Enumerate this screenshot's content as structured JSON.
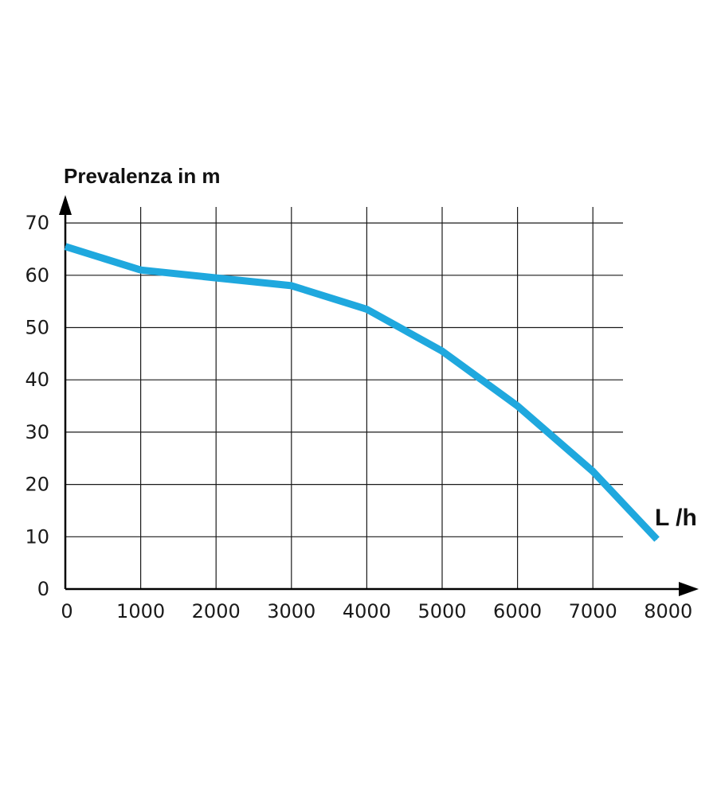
{
  "chart_data": {
    "type": "line",
    "ylabel": "Prevalenza in m",
    "xlabel": "L /h",
    "xlim": [
      0,
      8000
    ],
    "ylim": [
      0,
      70
    ],
    "x_ticks": [
      "0",
      "1000",
      "2000",
      "3000",
      "4000",
      "5000",
      "6000",
      "7000",
      "8000"
    ],
    "y_ticks": [
      "0",
      "10",
      "20",
      "30",
      "40",
      "50",
      "60",
      "70"
    ],
    "grid": true,
    "series": [
      {
        "color": "#1fa8de",
        "points": [
          {
            "x": 0,
            "y": 65.5
          },
          {
            "x": 1000,
            "y": 61
          },
          {
            "x": 2000,
            "y": 59.5
          },
          {
            "x": 3000,
            "y": 58
          },
          {
            "x": 4000,
            "y": 53.5
          },
          {
            "x": 5000,
            "y": 45.5
          },
          {
            "x": 6000,
            "y": 35
          },
          {
            "x": 7000,
            "y": 22.5
          },
          {
            "x": 7850,
            "y": 9.5
          }
        ]
      }
    ]
  }
}
